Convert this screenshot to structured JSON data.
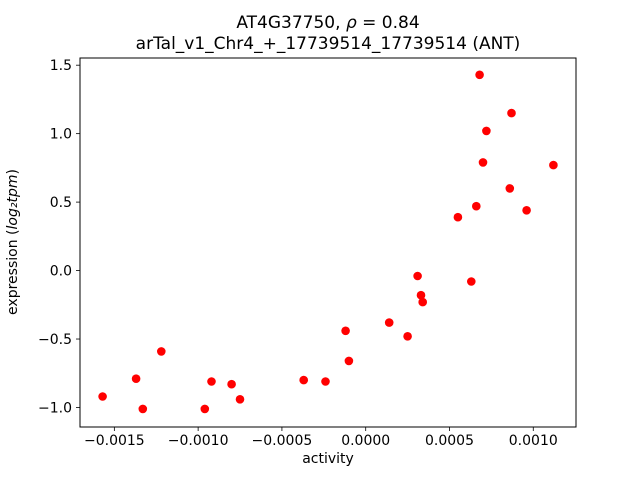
{
  "chart": {
    "title_line1_prefix": "AT4G37750, ",
    "title_line1_rho": "ρ",
    "title_line1_suffix": " = 0.84",
    "title_line2": "arTal_v1_Chr4_+_17739514_17739514 (ANT)",
    "xlabel": "activity",
    "ylabel_prefix": "expression (",
    "ylabel_math": "log₂tpm",
    "ylabel_suffix": ")"
  },
  "chart_data": {
    "type": "scatter",
    "title": "AT4G37750, ρ = 0.84\narTal_v1_Chr4_+_17739514_17739514 (ANT)",
    "xlabel": "activity",
    "ylabel": "expression (log₂tpm)",
    "marker_color": "#ff0000",
    "text_color": "#000000",
    "grid": false,
    "legend": false,
    "xlim": [
      -0.001705,
      0.001255
    ],
    "ylim": [
      -1.1425,
      1.5525
    ],
    "x_ticks": [
      {
        "value": -0.0015,
        "label": "−0.0015"
      },
      {
        "value": -0.001,
        "label": "−0.0010"
      },
      {
        "value": -0.0005,
        "label": "−0.0005"
      },
      {
        "value": 0.0,
        "label": "0.0000"
      },
      {
        "value": 0.0005,
        "label": "0.0005"
      },
      {
        "value": 0.001,
        "label": "0.0010"
      }
    ],
    "y_ticks": [
      {
        "value": -1.0,
        "label": "−1.0"
      },
      {
        "value": -0.5,
        "label": "−0.5"
      },
      {
        "value": 0.0,
        "label": "0.0"
      },
      {
        "value": 0.5,
        "label": "0.5"
      },
      {
        "value": 1.0,
        "label": "1.0"
      },
      {
        "value": 1.5,
        "label": "1.5"
      }
    ],
    "points": [
      [
        -0.00157,
        -0.92
      ],
      [
        -0.00137,
        -0.79
      ],
      [
        -0.00133,
        -1.01
      ],
      [
        -0.00122,
        -0.59
      ],
      [
        -0.00096,
        -1.01
      ],
      [
        -0.00092,
        -0.81
      ],
      [
        -0.0008,
        -0.83
      ],
      [
        -0.00075,
        -0.94
      ],
      [
        -0.00037,
        -0.8
      ],
      [
        -0.00024,
        -0.81
      ],
      [
        -0.00012,
        -0.44
      ],
      [
        -0.0001,
        -0.66
      ],
      [
        0.00014,
        -0.38
      ],
      [
        0.00025,
        -0.48
      ],
      [
        0.00031,
        -0.04
      ],
      [
        0.00033,
        -0.18
      ],
      [
        0.00034,
        -0.23
      ],
      [
        0.00055,
        0.39
      ],
      [
        0.00063,
        -0.08
      ],
      [
        0.00066,
        0.47
      ],
      [
        0.00068,
        1.43
      ],
      [
        0.0007,
        0.79
      ],
      [
        0.00072,
        1.02
      ],
      [
        0.00086,
        0.6
      ],
      [
        0.00087,
        1.15
      ],
      [
        0.00096,
        0.44
      ],
      [
        0.00112,
        0.77
      ]
    ]
  }
}
